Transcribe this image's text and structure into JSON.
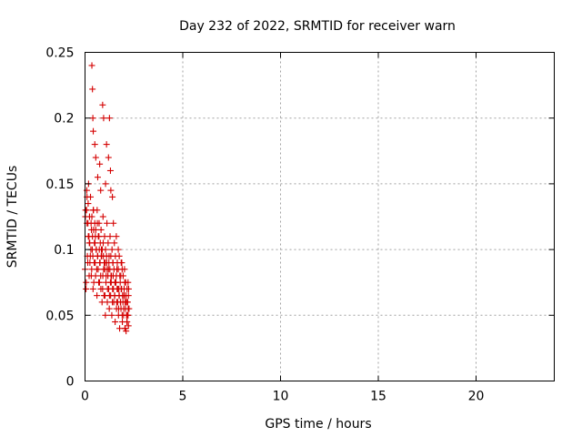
{
  "chart_data": {
    "type": "scatter",
    "title": "Day 232 of 2022, SRMTID for receiver warn",
    "xlabel": "GPS time / hours",
    "ylabel": "SRMTID / TECUs",
    "xlim": [
      0,
      24
    ],
    "ylim": [
      0,
      0.25
    ],
    "xticks": [
      0,
      5,
      10,
      15,
      20
    ],
    "xtick_labels": [
      "0",
      "5",
      "10",
      "15",
      "20"
    ],
    "yticks": [
      0,
      0.05,
      0.1,
      0.15,
      0.2,
      0.25
    ],
    "ytick_labels": [
      "0",
      "0.05",
      "0.1",
      "0.15",
      "0.2",
      "0.25"
    ],
    "grid": true,
    "marker": "+",
    "color": "#d40000",
    "series": [
      {
        "name": "SRMTID",
        "x": [
          0.0,
          0.05,
          0.08,
          0.1,
          0.12,
          0.15,
          0.18,
          0.2,
          0.22,
          0.25,
          0.28,
          0.3,
          0.32,
          0.35,
          0.38,
          0.4,
          0.42,
          0.45,
          0.48,
          0.5,
          0.52,
          0.55,
          0.58,
          0.6,
          0.62,
          0.65,
          0.68,
          0.7,
          0.72,
          0.75,
          0.78,
          0.8,
          0.82,
          0.85,
          0.88,
          0.9,
          0.92,
          0.95,
          0.98,
          1.0,
          1.02,
          1.05,
          1.08,
          1.1,
          1.12,
          1.15,
          1.18,
          1.2,
          1.22,
          1.25,
          1.28,
          1.3,
          1.32,
          1.35,
          1.38,
          1.4,
          1.42,
          1.45,
          1.48,
          1.5,
          1.52,
          1.55,
          1.58,
          1.6,
          1.62,
          1.65,
          1.68,
          1.7,
          1.72,
          1.75,
          1.78,
          1.8,
          1.82,
          1.85,
          1.88,
          1.9,
          1.92,
          1.95,
          1.98,
          2.0,
          2.02,
          2.05,
          2.08,
          2.1,
          2.12,
          2.15,
          2.18,
          2.2,
          2.22,
          2.25,
          0.02,
          0.06,
          0.1,
          0.14,
          0.17,
          0.21,
          0.24,
          0.27,
          0.31,
          0.34,
          0.37,
          0.41,
          0.44,
          0.47,
          0.51,
          0.54,
          0.57,
          0.61,
          0.64,
          0.67,
          0.71,
          0.74,
          0.77,
          0.81,
          0.84,
          0.87,
          0.91,
          0.94,
          0.97,
          1.01,
          1.04,
          1.07,
          1.11,
          1.14,
          1.17,
          1.21,
          1.24,
          1.27,
          1.31,
          1.34,
          1.37,
          1.41,
          1.44,
          1.47,
          1.51,
          1.54,
          1.57,
          1.61,
          1.64,
          1.67,
          1.71,
          1.74,
          1.77,
          1.81,
          1.84,
          1.87,
          1.91,
          1.94,
          1.97,
          2.01,
          2.04,
          2.07,
          2.11,
          2.14,
          2.17,
          2.21,
          0.03,
          0.09,
          0.16,
          0.23,
          0.33,
          0.43,
          0.53,
          0.63,
          0.73,
          0.83,
          0.93,
          1.03,
          1.13,
          1.23,
          1.33,
          1.43,
          1.53,
          1.63,
          1.73,
          1.83,
          1.93,
          2.03,
          2.13,
          2.23,
          0.35,
          0.38,
          0.4,
          0.42,
          0.5,
          0.55,
          0.65,
          0.75,
          0.8,
          0.9,
          0.95,
          1.05,
          1.1,
          1.2,
          1.25,
          1.3,
          1.32,
          1.4,
          1.45,
          1.6,
          1.7,
          1.75,
          1.85,
          1.9,
          2.0,
          2.05,
          2.1,
          2.15,
          2.2,
          2.22
        ],
        "y": [
          0.085,
          0.07,
          0.13,
          0.14,
          0.095,
          0.12,
          0.15,
          0.11,
          0.105,
          0.09,
          0.14,
          0.1,
          0.08,
          0.125,
          0.11,
          0.095,
          0.13,
          0.075,
          0.105,
          0.12,
          0.09,
          0.115,
          0.1,
          0.085,
          0.13,
          0.095,
          0.11,
          0.075,
          0.12,
          0.09,
          0.105,
          0.08,
          0.115,
          0.095,
          0.1,
          0.07,
          0.125,
          0.085,
          0.09,
          0.11,
          0.065,
          0.1,
          0.08,
          0.095,
          0.12,
          0.07,
          0.105,
          0.085,
          0.09,
          0.065,
          0.11,
          0.075,
          0.095,
          0.08,
          0.1,
          0.06,
          0.09,
          0.07,
          0.085,
          0.105,
          0.065,
          0.095,
          0.075,
          0.08,
          0.06,
          0.09,
          0.07,
          0.085,
          0.055,
          0.065,
          0.08,
          0.075,
          0.06,
          0.07,
          0.09,
          0.05,
          0.065,
          0.08,
          0.055,
          0.07,
          0.085,
          0.06,
          0.075,
          0.065,
          0.05,
          0.07,
          0.06,
          0.075,
          0.065,
          0.055,
          0.125,
          0.075,
          0.12,
          0.09,
          0.11,
          0.08,
          0.105,
          0.095,
          0.12,
          0.085,
          0.1,
          0.07,
          0.115,
          0.09,
          0.105,
          0.08,
          0.1,
          0.065,
          0.095,
          0.085,
          0.11,
          0.075,
          0.09,
          0.07,
          0.1,
          0.06,
          0.08,
          0.095,
          0.065,
          0.085,
          0.05,
          0.075,
          0.09,
          0.06,
          0.08,
          0.07,
          0.055,
          0.085,
          0.065,
          0.075,
          0.05,
          0.07,
          0.08,
          0.06,
          0.065,
          0.045,
          0.075,
          0.055,
          0.07,
          0.06,
          0.05,
          0.065,
          0.04,
          0.06,
          0.055,
          0.07,
          0.045,
          0.06,
          0.05,
          0.065,
          0.04,
          0.055,
          0.06,
          0.045,
          0.05,
          0.055,
          0.13,
          0.145,
          0.135,
          0.125,
          0.115,
          0.13,
          0.11,
          0.12,
          0.1,
          0.095,
          0.105,
          0.09,
          0.085,
          0.095,
          0.08,
          0.09,
          0.075,
          0.085,
          0.07,
          0.08,
          0.065,
          0.075,
          0.06,
          0.07,
          0.24,
          0.222,
          0.2,
          0.19,
          0.18,
          0.17,
          0.155,
          0.165,
          0.145,
          0.21,
          0.2,
          0.15,
          0.18,
          0.17,
          0.2,
          0.16,
          0.145,
          0.14,
          0.12,
          0.11,
          0.1,
          0.095,
          0.09,
          0.085,
          0.065,
          0.04,
          0.038,
          0.045,
          0.05,
          0.042
        ]
      }
    ]
  }
}
